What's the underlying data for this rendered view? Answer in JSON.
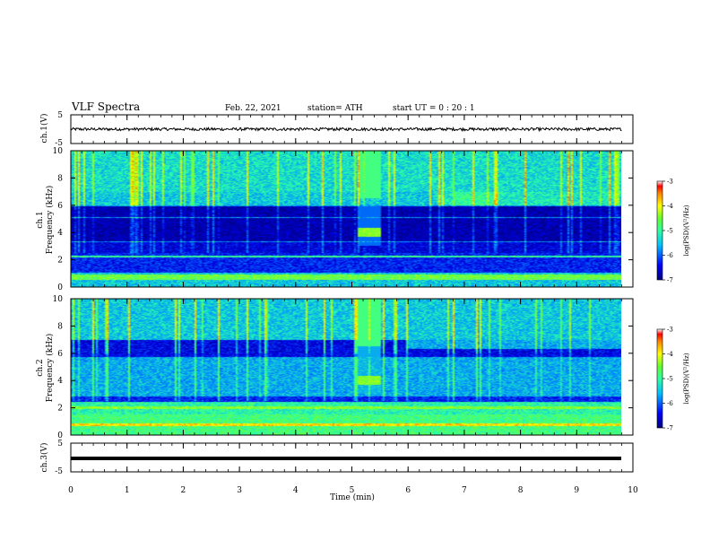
{
  "header": {
    "title": "VLF Spectra",
    "date": "Feb. 22, 2021",
    "station": "station= ATH",
    "start": "start  UT =   0 : 20 : 1"
  },
  "colors": {
    "spectrogram_low": "#00007f",
    "spectrogram_mid": "#00b0ff",
    "spectrogram_high": "#55ff55",
    "colorbar_top": "#ff0000",
    "colorbar_bottom": "#000080"
  },
  "chart_data": [
    {
      "type": "line",
      "id": "ch1-waveform",
      "ylabel": "ch.1(V)",
      "ylim": [
        -5,
        5
      ],
      "y_ticks": [
        "5",
        "-5"
      ],
      "xlim": [
        0,
        10
      ],
      "description_values": {
        "mean": 0,
        "amplitude_approx": 0.5
      }
    },
    {
      "type": "heatmap",
      "id": "ch1-spectrogram",
      "ylabel": "ch.1\nFrequency (kHz)",
      "ylabel_line1": "ch.1",
      "ylabel_line2": "Frequency (kHz)",
      "ylim": [
        0,
        10
      ],
      "y_ticks": [
        "0",
        "2",
        "4",
        "6",
        "8",
        "10"
      ],
      "xlim": [
        0,
        10
      ],
      "colorbar": {
        "label": "log(PSD)(V²/Hz)",
        "range": [
          -7,
          -3
        ],
        "ticks": [
          "-3",
          "-4",
          "-5",
          "-6",
          "-7"
        ]
      },
      "features": {
        "burst_time_min": [
          5.1,
          5.5
        ],
        "burst_signal_khz": 4.0
      }
    },
    {
      "type": "heatmap",
      "id": "ch2-spectrogram",
      "ylabel_line1": "ch.2",
      "ylabel_line2": "Frequency (kHz)",
      "ylim": [
        0,
        10
      ],
      "y_ticks": [
        "0",
        "2",
        "4",
        "6",
        "8",
        "10"
      ],
      "xlim": [
        0,
        10
      ],
      "colorbar": {
        "label": "log(PSD)(V²/Hz)",
        "range": [
          -7,
          -3
        ],
        "ticks": [
          "-3",
          "-4",
          "-5",
          "-6",
          "-7"
        ]
      },
      "features": {
        "burst_time_min": [
          5.1,
          5.5
        ],
        "burst_signal_khz": 4.0
      }
    },
    {
      "type": "line",
      "id": "ch3-waveform",
      "ylabel": "ch.3(V)",
      "ylim": [
        -5,
        5
      ],
      "y_ticks": [
        "5",
        "-5"
      ],
      "xlim": [
        0,
        10
      ],
      "x_ticks": [
        "0",
        "1",
        "2",
        "3",
        "4",
        "5",
        "6",
        "7",
        "8",
        "9",
        "10"
      ],
      "xlabel": "Time  (min)",
      "description_values": {
        "level": 0
      }
    }
  ]
}
